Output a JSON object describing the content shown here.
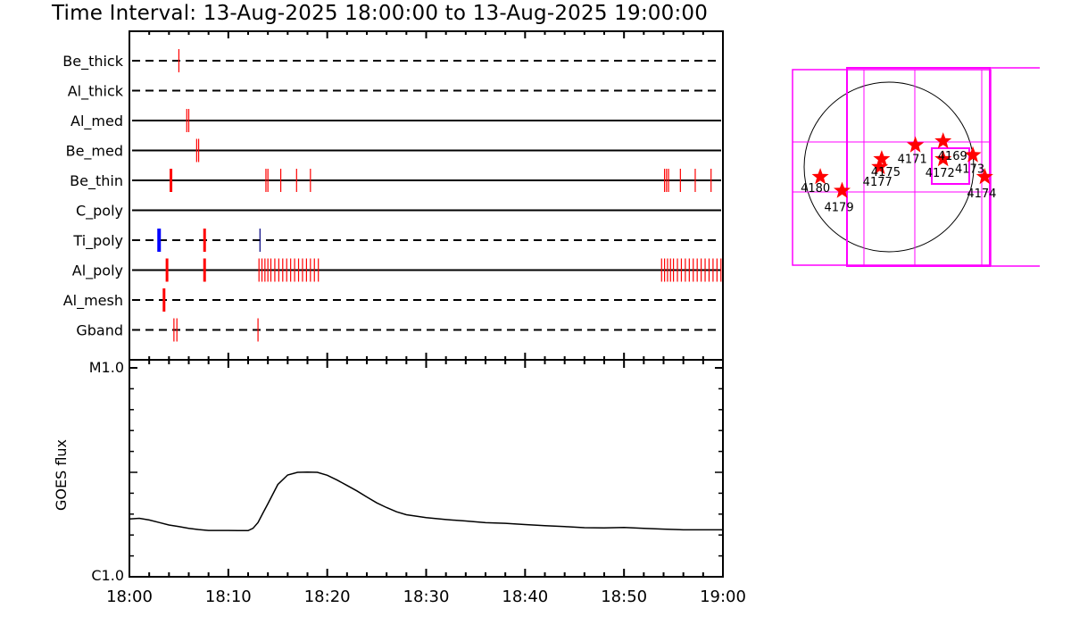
{
  "title": "Time Interval: 13-Aug-2025 18:00:00 to 13-Aug-2025 19:00:00",
  "colors": {
    "event_red": "#ff0000",
    "event_blue": "#0000ff",
    "map_magenta": "#ff00ff",
    "axis_black": "#000000"
  },
  "chart_data": [
    {
      "type": "timeline",
      "name": "filter-timeline",
      "x_range_minutes": [
        0,
        60
      ],
      "rows": [
        {
          "label": "Be_thick",
          "style": "dashed",
          "events": [
            {
              "t": 5.0
            }
          ]
        },
        {
          "label": "Al_thick",
          "style": "dashed",
          "events": []
        },
        {
          "label": "Al_med",
          "style": "solid",
          "events": [
            {
              "t": 5.8
            },
            {
              "t": 6.0
            }
          ]
        },
        {
          "label": "Be_med",
          "style": "solid",
          "events": [
            {
              "t": 6.8
            },
            {
              "t": 7.0
            }
          ]
        },
        {
          "label": "Be_thin",
          "style": "solid",
          "events": [
            {
              "t": 4.2,
              "thick": true
            },
            {
              "t": 13.8
            },
            {
              "t": 14.0
            },
            {
              "t": 15.3
            },
            {
              "t": 16.9
            },
            {
              "t": 18.3
            },
            {
              "t": 54.1
            },
            {
              "t": 54.3
            },
            {
              "t": 54.5
            },
            {
              "t": 55.7
            },
            {
              "t": 57.2
            },
            {
              "t": 58.8
            }
          ]
        },
        {
          "label": "C_poly",
          "style": "solid",
          "events": []
        },
        {
          "label": "Ti_poly",
          "style": "dashed",
          "events": [
            {
              "t": 3.0,
              "thick": true,
              "color": "blue"
            },
            {
              "t": 7.6,
              "thick": true
            },
            {
              "t": 13.2,
              "color": "navy"
            }
          ]
        },
        {
          "label": "Al_poly",
          "style": "solid",
          "events": [
            {
              "t": 3.8,
              "thick": true
            },
            {
              "t": 7.6,
              "thick": true
            },
            {
              "t": 13.1
            },
            {
              "t": 13.4
            },
            {
              "t": 13.7
            },
            {
              "t": 14.0
            },
            {
              "t": 14.3
            },
            {
              "t": 14.7
            },
            {
              "t": 15.1
            },
            {
              "t": 15.5
            },
            {
              "t": 15.9
            },
            {
              "t": 16.3
            },
            {
              "t": 16.7
            },
            {
              "t": 17.1
            },
            {
              "t": 17.5
            },
            {
              "t": 17.9
            },
            {
              "t": 18.3
            },
            {
              "t": 18.7
            },
            {
              "t": 19.1
            },
            {
              "t": 53.8
            },
            {
              "t": 54.1
            },
            {
              "t": 54.4
            },
            {
              "t": 54.7
            },
            {
              "t": 55.0
            },
            {
              "t": 55.4
            },
            {
              "t": 55.8
            },
            {
              "t": 56.2
            },
            {
              "t": 56.6
            },
            {
              "t": 57.0
            },
            {
              "t": 57.4
            },
            {
              "t": 57.8
            },
            {
              "t": 58.2
            },
            {
              "t": 58.6
            },
            {
              "t": 59.0
            },
            {
              "t": 59.4
            },
            {
              "t": 59.8
            }
          ]
        },
        {
          "label": "Al_mesh",
          "style": "dashed",
          "events": [
            {
              "t": 3.5,
              "thick": true
            }
          ]
        },
        {
          "label": "Gband",
          "style": "dashed",
          "events": [
            {
              "t": 4.5
            },
            {
              "t": 4.8
            },
            {
              "t": 13.0
            }
          ]
        }
      ]
    },
    {
      "type": "line",
      "name": "goes-flux",
      "ylabel": "GOES flux",
      "y_tick_labels": {
        "top": "M1.0",
        "bottom": "C1.0"
      },
      "ylim": [
        0,
        1
      ],
      "x_tick_labels": [
        "18:00",
        "18:10",
        "18:20",
        "18:30",
        "18:40",
        "18:50",
        "19:00"
      ],
      "x_minutes": [
        0,
        1,
        2,
        3,
        4,
        5,
        6,
        7,
        8,
        9,
        10,
        11,
        12,
        12.5,
        13,
        13.5,
        14,
        15,
        16,
        17,
        18,
        19,
        20,
        21,
        22,
        23,
        24,
        25,
        26,
        27,
        28,
        29,
        30,
        32,
        34,
        36,
        38,
        40,
        42,
        44,
        46,
        48,
        50,
        52,
        54,
        56,
        58,
        60
      ],
      "y_values": [
        0.277,
        0.28,
        0.272,
        0.26,
        0.248,
        0.24,
        0.232,
        0.226,
        0.222,
        0.222,
        0.222,
        0.221,
        0.221,
        0.232,
        0.26,
        0.305,
        0.35,
        0.442,
        0.487,
        0.5,
        0.501,
        0.5,
        0.486,
        0.463,
        0.437,
        0.411,
        0.382,
        0.354,
        0.331,
        0.311,
        0.297,
        0.29,
        0.283,
        0.274,
        0.267,
        0.259,
        0.256,
        0.25,
        0.245,
        0.24,
        0.235,
        0.234,
        0.236,
        0.232,
        0.228,
        0.225,
        0.225,
        0.225
      ]
    },
    {
      "type": "map",
      "name": "solar-disk-map",
      "active_regions": [
        {
          "label": "4180",
          "x": 0.14,
          "y": 0.55
        },
        {
          "label": "4179",
          "x": 0.25,
          "y": 0.62
        },
        {
          "label": "4175",
          "x": 0.45,
          "y": 0.46
        },
        {
          "label": "4177",
          "x": 0.44,
          "y": 0.5
        },
        {
          "label": "4171",
          "x": 0.62,
          "y": 0.39
        },
        {
          "label": "4169",
          "x": 0.76,
          "y": 0.37
        },
        {
          "label": "4172",
          "x": 0.76,
          "y": 0.46
        },
        {
          "label": "4173",
          "x": 0.91,
          "y": 0.44
        },
        {
          "label": "4174",
          "x": 0.97,
          "y": 0.55
        }
      ]
    }
  ]
}
